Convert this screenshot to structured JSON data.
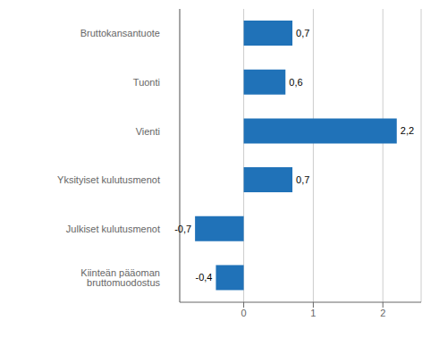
{
  "chart_data": {
    "type": "bar",
    "orientation": "horizontal",
    "categories": [
      "Kiinteän pääoman bruttomuodostus",
      "Julkiset kulutusmenot",
      "Yksityiset kulutusmenot",
      "Vienti",
      "Tuonti",
      "Bruttokansantuote"
    ],
    "values": [
      -0.4,
      -0.7,
      0.7,
      2.2,
      0.6,
      0.7
    ],
    "value_labels": [
      "-0,4",
      "-0,7",
      "0,7",
      "2,2",
      "0,6",
      "0,7"
    ],
    "color": "#2072B8",
    "xlim": [
      -0.92,
      2.55
    ],
    "xticks": [
      0,
      1,
      2
    ],
    "grid": true,
    "data_labels": true
  }
}
